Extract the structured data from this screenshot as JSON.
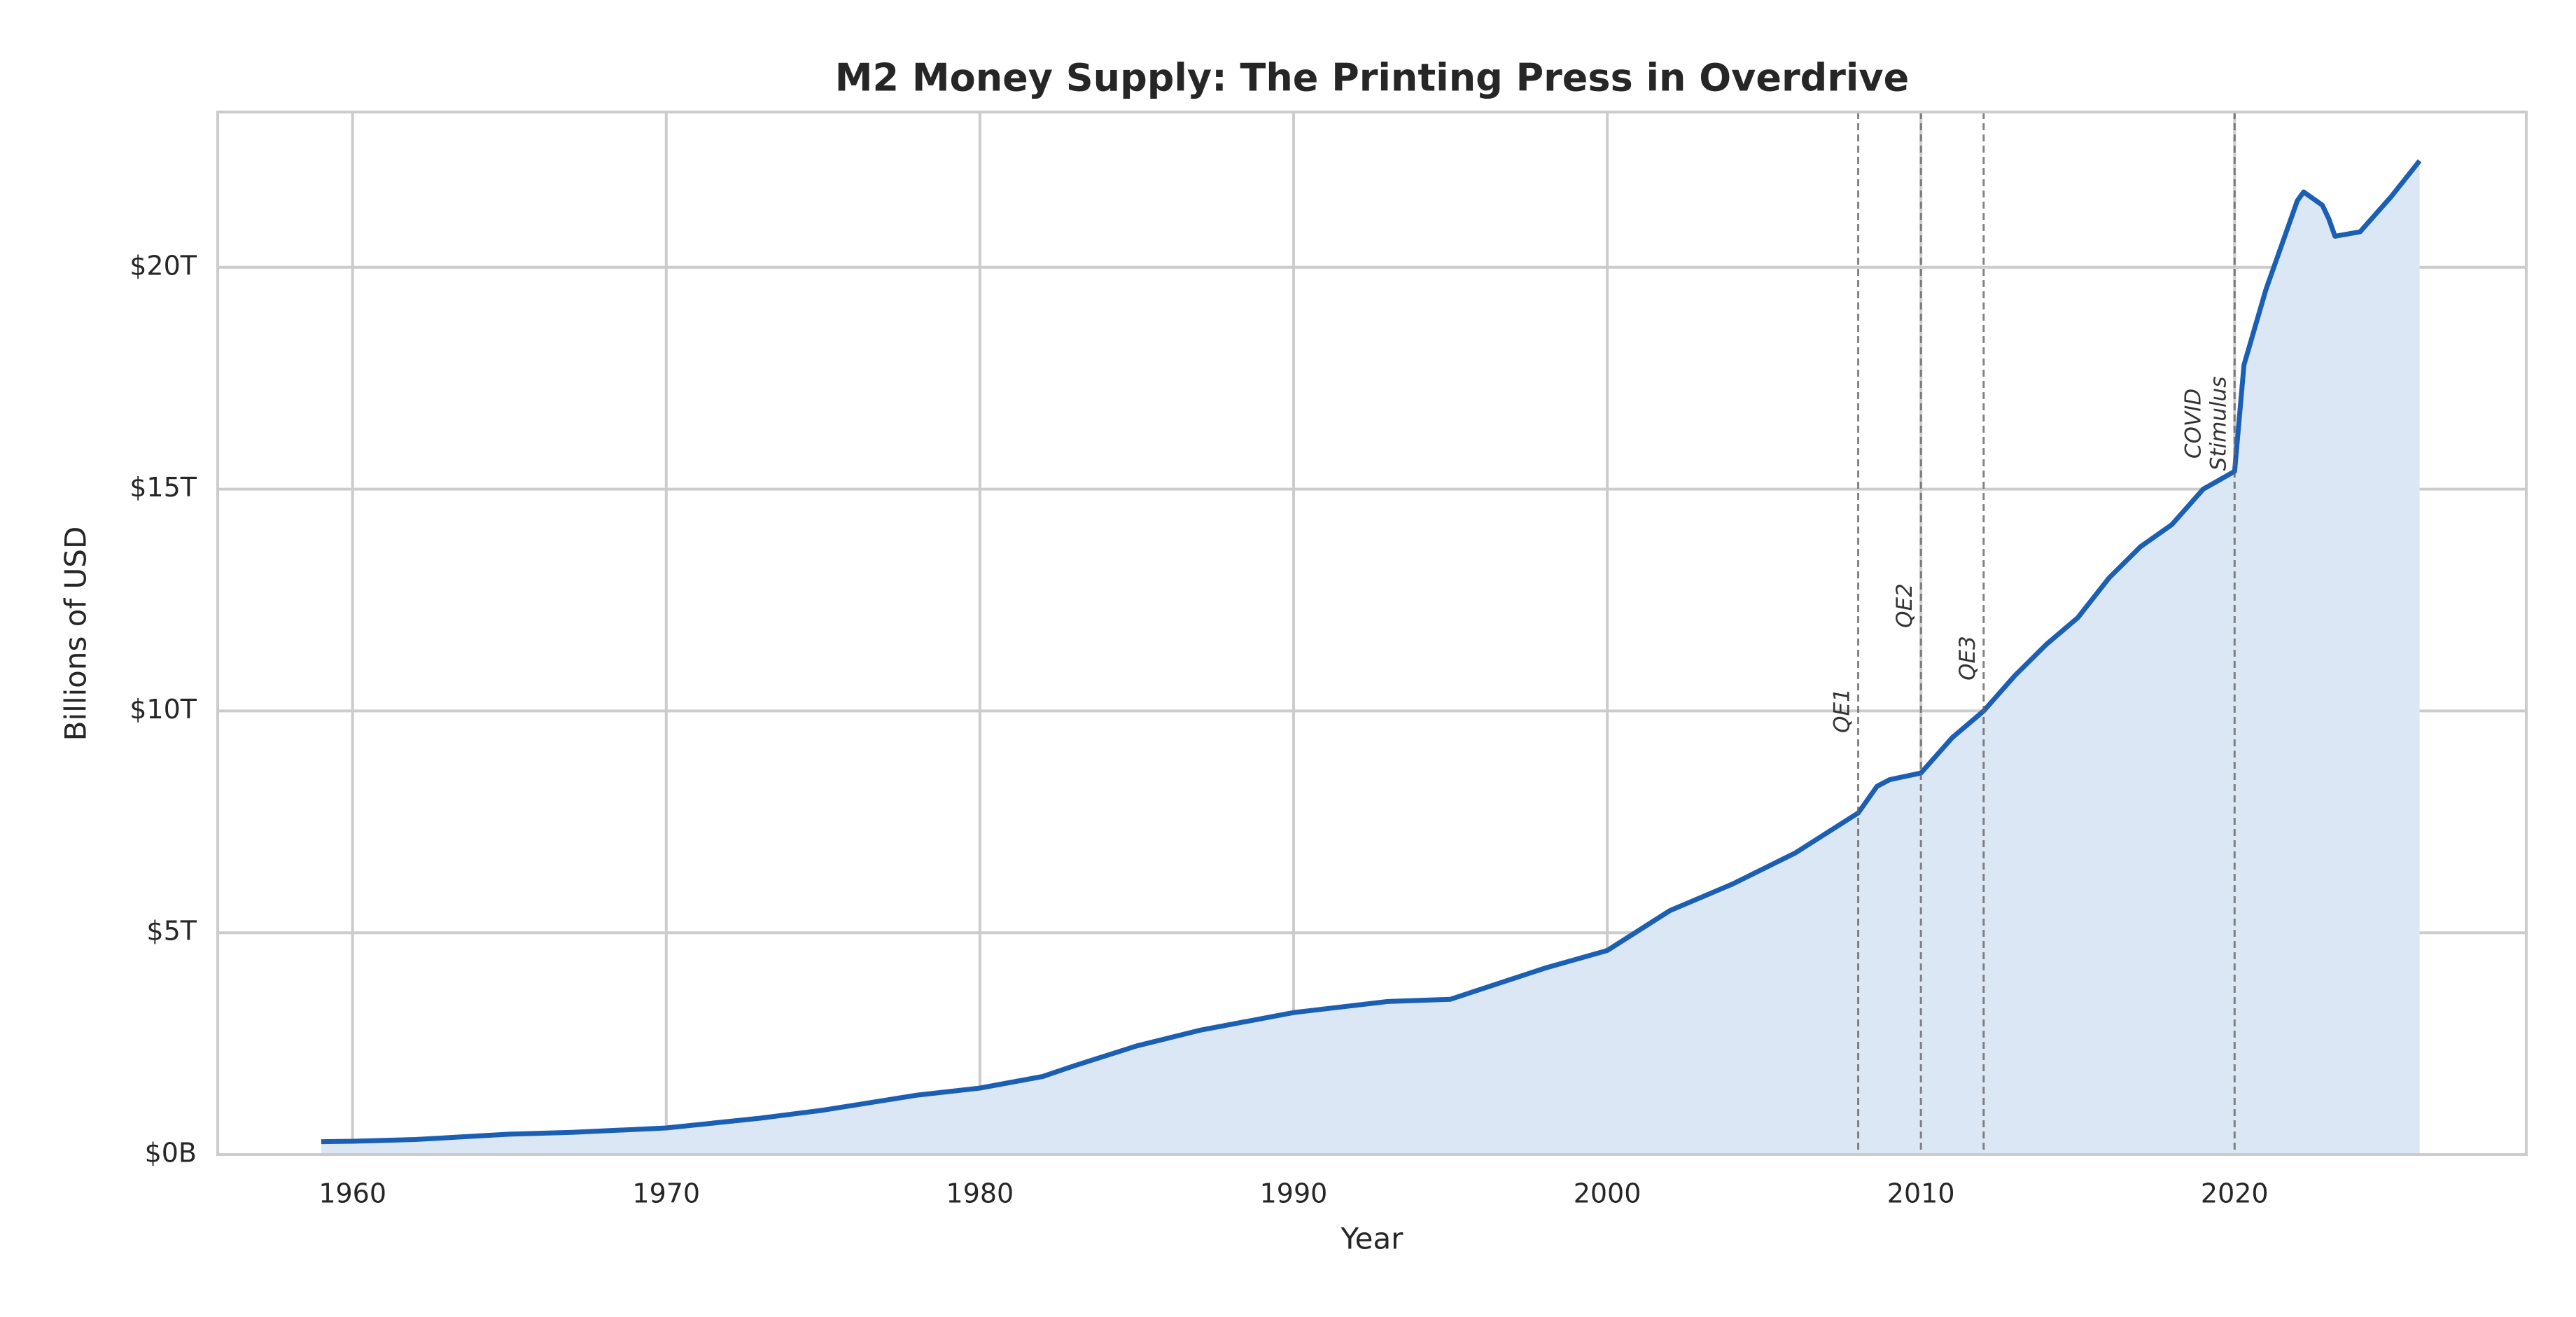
{
  "chart_data": {
    "type": "line",
    "title": "M2 Money Supply: The Printing Press in Overdrive",
    "x_label": "Year",
    "y_label": "Billions of USD",
    "x": [
      1959,
      1960,
      1962,
      1965,
      1967,
      1970,
      1973,
      1975,
      1978,
      1980,
      1982,
      1983,
      1985,
      1987,
      1990,
      1993,
      1995,
      1998,
      2000,
      2002,
      2004,
      2006,
      2008,
      2008.6,
      2009,
      2010,
      2011,
      2012,
      2013,
      2014,
      2015,
      2016,
      2017,
      2018,
      2019,
      2020,
      2020.3,
      2021,
      2022,
      2022.2,
      2022.8,
      2023,
      2023.2,
      2024,
      2025,
      2025.9
    ],
    "values": [
      290,
      300,
      340,
      460,
      500,
      600,
      820,
      1000,
      1340,
      1500,
      1760,
      2000,
      2450,
      2800,
      3200,
      3450,
      3500,
      4200,
      4600,
      5500,
      6100,
      6800,
      7700,
      8300,
      8450,
      8600,
      9400,
      10000,
      10800,
      11500,
      12100,
      13000,
      13700,
      14200,
      15000,
      15400,
      17800,
      19500,
      21500,
      21700,
      21400,
      21100,
      20700,
      20800,
      21600,
      22400
    ],
    "color": "#1a5fb4",
    "fill_color": "#dce7f5",
    "xlim": [
      1955.7,
      2029.3
    ],
    "xticks": [
      1960,
      1970,
      1980,
      1990,
      2000,
      2010,
      2020
    ],
    "ylim": [
      0,
      23500
    ],
    "yticks": [
      {
        "value": 0,
        "label": "$0B"
      },
      {
        "value": 5000,
        "label": "$5T"
      },
      {
        "value": 10000,
        "label": "$10T"
      },
      {
        "value": 15000,
        "label": "$15T"
      },
      {
        "value": 20000,
        "label": "$20T"
      }
    ],
    "grid": true,
    "annotations": [
      {
        "x": 2008,
        "label": "QE1"
      },
      {
        "x": 2010,
        "label": "QE2"
      },
      {
        "x": 2012,
        "label": "QE3"
      },
      {
        "x": 2020,
        "label": "COVID\nStimulus"
      }
    ]
  }
}
